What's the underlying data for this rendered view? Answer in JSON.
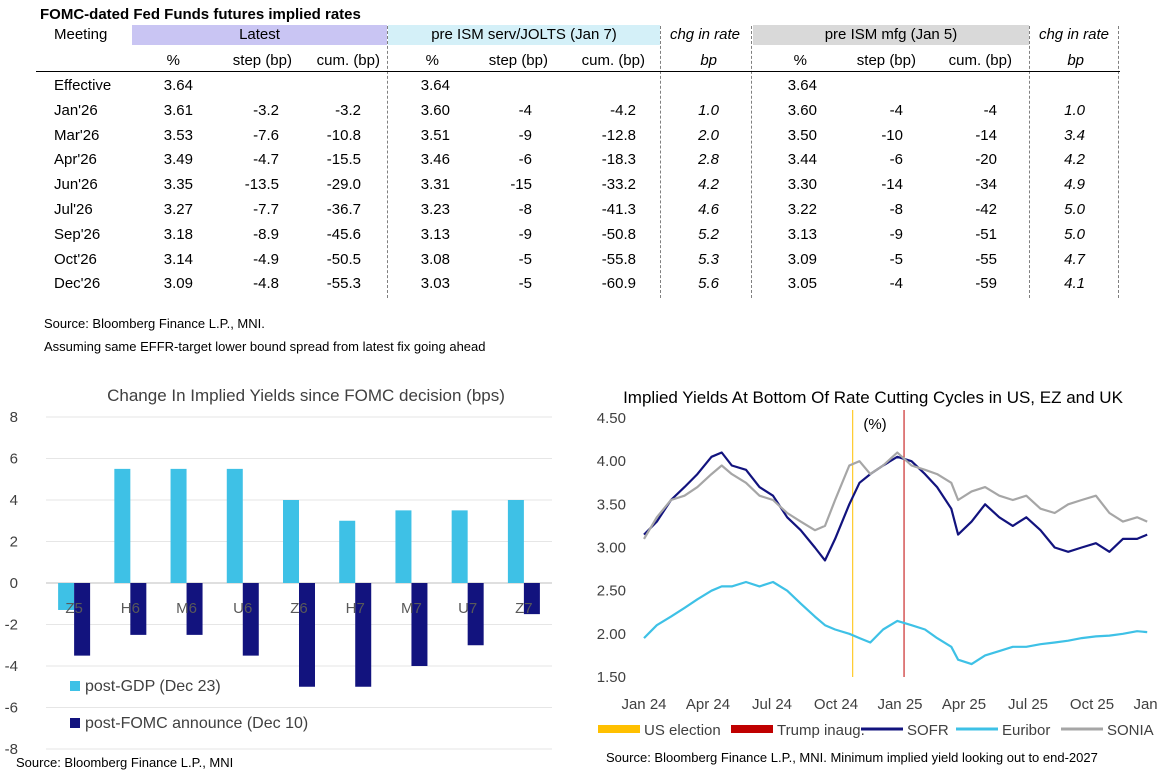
{
  "table": {
    "title": "FOMC-dated Fed Funds futures implied rates",
    "meeting_label": "Meeting",
    "groups": [
      {
        "label": "Latest",
        "color": "#c9c5f3"
      },
      {
        "label": "pre ISM serv/JOLTS (Jan 7)",
        "color": "#d4f0f8"
      },
      {
        "label": "chg in rate",
        "color": "#ffffff"
      },
      {
        "label": "pre ISM mfg (Jan 5)",
        "color": "#d9d9d9"
      },
      {
        "label": "chg in rate",
        "color": "#ffffff"
      }
    ],
    "subheaders": {
      "pct": "%",
      "step": "step (bp)",
      "cum": "cum. (bp)",
      "bp": "bp"
    },
    "rows": [
      {
        "meeting": "Effective",
        "latest": [
          "3.64",
          "",
          ""
        ],
        "pre_serv": [
          "3.64",
          "",
          ""
        ],
        "chg1": "",
        "pre_mfg": [
          "3.64",
          "",
          ""
        ],
        "chg2": ""
      },
      {
        "meeting": "Jan'26",
        "latest": [
          "3.61",
          "-3.2",
          "-3.2"
        ],
        "pre_serv": [
          "3.60",
          "-4",
          "-4.2"
        ],
        "chg1": "1.0",
        "pre_mfg": [
          "3.60",
          "-4",
          "-4"
        ],
        "chg2": "1.0"
      },
      {
        "meeting": "Mar'26",
        "latest": [
          "3.53",
          "-7.6",
          "-10.8"
        ],
        "pre_serv": [
          "3.51",
          "-9",
          "-12.8"
        ],
        "chg1": "2.0",
        "pre_mfg": [
          "3.50",
          "-10",
          "-14"
        ],
        "chg2": "3.4"
      },
      {
        "meeting": "Apr'26",
        "latest": [
          "3.49",
          "-4.7",
          "-15.5"
        ],
        "pre_serv": [
          "3.46",
          "-6",
          "-18.3"
        ],
        "chg1": "2.8",
        "pre_mfg": [
          "3.44",
          "-6",
          "-20"
        ],
        "chg2": "4.2"
      },
      {
        "meeting": "Jun'26",
        "latest": [
          "3.35",
          "-13.5",
          "-29.0"
        ],
        "pre_serv": [
          "3.31",
          "-15",
          "-33.2"
        ],
        "chg1": "4.2",
        "pre_mfg": [
          "3.30",
          "-14",
          "-34"
        ],
        "chg2": "4.9"
      },
      {
        "meeting": "Jul'26",
        "latest": [
          "3.27",
          "-7.7",
          "-36.7"
        ],
        "pre_serv": [
          "3.23",
          "-8",
          "-41.3"
        ],
        "chg1": "4.6",
        "pre_mfg": [
          "3.22",
          "-8",
          "-42"
        ],
        "chg2": "5.0"
      },
      {
        "meeting": "Sep'26",
        "latest": [
          "3.18",
          "-8.9",
          "-45.6"
        ],
        "pre_serv": [
          "3.13",
          "-9",
          "-50.8"
        ],
        "chg1": "5.2",
        "pre_mfg": [
          "3.13",
          "-9",
          "-51"
        ],
        "chg2": "5.0"
      },
      {
        "meeting": "Oct'26",
        "latest": [
          "3.14",
          "-4.9",
          "-50.5"
        ],
        "pre_serv": [
          "3.08",
          "-5",
          "-55.8"
        ],
        "chg1": "5.3",
        "pre_mfg": [
          "3.09",
          "-5",
          "-55"
        ],
        "chg2": "4.7"
      },
      {
        "meeting": "Dec'26",
        "latest": [
          "3.09",
          "-4.8",
          "-55.3"
        ],
        "pre_serv": [
          "3.03",
          "-5",
          "-60.9"
        ],
        "chg1": "5.6",
        "pre_mfg": [
          "3.05",
          "-4",
          "-59"
        ],
        "chg2": "4.1"
      }
    ],
    "source": "Source: Bloomberg Finance L.P., MNI.",
    "note": "Assuming same  EFFR-target lower bound spread from latest fix going ahead"
  },
  "chart_data": [
    {
      "type": "bar",
      "title": "Change In Implied Yields since FOMC decision (bps)",
      "categories": [
        "Z5",
        "H6",
        "M6",
        "U6",
        "Z6",
        "H7",
        "M7",
        "U7",
        "Z7"
      ],
      "series": [
        {
          "name": "post-GDP (Dec 23)",
          "color": "#3ec1e6",
          "values": [
            -1.3,
            5.5,
            5.5,
            5.5,
            4.0,
            3.0,
            3.5,
            3.5,
            4.0
          ]
        },
        {
          "name": "post-FOMC announce (Dec 10)",
          "color": "#12137e",
          "values": [
            -3.5,
            -2.5,
            -2.5,
            -3.5,
            -5.0,
            -5.0,
            -4.0,
            -3.0,
            -1.5
          ]
        }
      ],
      "ylim": [
        -8,
        8
      ],
      "yticks": [
        -8,
        -6,
        -4,
        -2,
        0,
        2,
        4,
        6,
        8
      ],
      "legend_position": "bottom-left",
      "source": "Source: Bloomberg Finance L.P., MNI"
    },
    {
      "type": "line",
      "title": "Implied Yields At Bottom Of Rate Cutting Cycles in US, EZ and UK",
      "ylabel": "(%)",
      "ylim": [
        1.5,
        4.5
      ],
      "yticks": [
        "1.50",
        "2.00",
        "2.50",
        "3.00",
        "3.50",
        "4.00",
        "4.50"
      ],
      "xlim": [
        "2024-01-01",
        "2026-01-31"
      ],
      "xticks": [
        "Jan 24",
        "Apr 24",
        "Jul 24",
        "Oct 24",
        "Jan 25",
        "Apr 25",
        "Jul 25",
        "Oct 25",
        "Jan 26"
      ],
      "events": [
        {
          "name": "US election",
          "date": "2024-11-05",
          "color": "#ffc000"
        },
        {
          "name": "Trump inaug.",
          "date": "2025-01-20",
          "color": "#c00000"
        }
      ],
      "series": [
        {
          "name": "SOFR",
          "color": "#12137e",
          "dates": [
            "2024-01-01",
            "2024-01-20",
            "2024-02-10",
            "2024-03-01",
            "2024-03-20",
            "2024-04-10",
            "2024-04-25",
            "2024-05-10",
            "2024-05-31",
            "2024-06-20",
            "2024-07-10",
            "2024-07-31",
            "2024-08-20",
            "2024-09-10",
            "2024-09-25",
            "2024-10-10",
            "2024-10-31",
            "2024-11-15",
            "2024-12-01",
            "2024-12-20",
            "2025-01-10",
            "2025-01-31",
            "2025-02-20",
            "2025-03-10",
            "2025-03-31",
            "2025-04-10",
            "2025-04-30",
            "2025-05-20",
            "2025-06-10",
            "2025-06-30",
            "2025-07-20",
            "2025-08-10",
            "2025-08-31",
            "2025-09-20",
            "2025-10-10",
            "2025-10-31",
            "2025-11-20",
            "2025-12-10",
            "2025-12-31",
            "2026-01-15"
          ],
          "values": [
            3.15,
            3.3,
            3.55,
            3.7,
            3.85,
            4.05,
            4.1,
            3.95,
            3.9,
            3.7,
            3.6,
            3.35,
            3.2,
            3.0,
            2.85,
            3.1,
            3.5,
            3.75,
            3.85,
            3.95,
            4.05,
            4.0,
            3.85,
            3.7,
            3.45,
            3.15,
            3.3,
            3.5,
            3.35,
            3.25,
            3.35,
            3.2,
            3.0,
            2.95,
            3.0,
            3.05,
            2.95,
            3.1,
            3.1,
            3.15
          ]
        },
        {
          "name": "Euribor",
          "color": "#3ec1e6",
          "dates": [
            "2024-01-01",
            "2024-01-20",
            "2024-02-10",
            "2024-03-01",
            "2024-03-20",
            "2024-04-10",
            "2024-04-25",
            "2024-05-10",
            "2024-05-31",
            "2024-06-20",
            "2024-07-10",
            "2024-07-31",
            "2024-08-20",
            "2024-09-10",
            "2024-09-25",
            "2024-10-10",
            "2024-10-31",
            "2024-11-15",
            "2024-12-01",
            "2024-12-20",
            "2025-01-10",
            "2025-01-31",
            "2025-02-20",
            "2025-03-10",
            "2025-03-31",
            "2025-04-10",
            "2025-04-30",
            "2025-05-20",
            "2025-06-10",
            "2025-06-30",
            "2025-07-20",
            "2025-08-10",
            "2025-08-31",
            "2025-09-20",
            "2025-10-10",
            "2025-10-31",
            "2025-11-20",
            "2025-12-10",
            "2025-12-31",
            "2026-01-15"
          ],
          "values": [
            1.95,
            2.1,
            2.2,
            2.3,
            2.4,
            2.5,
            2.55,
            2.55,
            2.6,
            2.55,
            2.6,
            2.5,
            2.35,
            2.2,
            2.1,
            2.05,
            2.0,
            1.95,
            1.9,
            2.05,
            2.15,
            2.1,
            2.05,
            1.95,
            1.85,
            1.7,
            1.65,
            1.75,
            1.8,
            1.85,
            1.85,
            1.88,
            1.9,
            1.92,
            1.95,
            1.97,
            1.98,
            2.0,
            2.03,
            2.02
          ]
        },
        {
          "name": "SONIA",
          "color": "#a6a6a6",
          "dates": [
            "2024-01-01",
            "2024-01-20",
            "2024-02-10",
            "2024-03-01",
            "2024-03-20",
            "2024-04-10",
            "2024-04-25",
            "2024-05-10",
            "2024-05-31",
            "2024-06-20",
            "2024-07-10",
            "2024-07-31",
            "2024-08-20",
            "2024-09-10",
            "2024-09-25",
            "2024-10-10",
            "2024-10-31",
            "2024-11-15",
            "2024-12-01",
            "2024-12-20",
            "2025-01-10",
            "2025-01-31",
            "2025-02-20",
            "2025-03-10",
            "2025-03-31",
            "2025-04-10",
            "2025-04-30",
            "2025-05-20",
            "2025-06-10",
            "2025-06-30",
            "2025-07-20",
            "2025-08-10",
            "2025-08-31",
            "2025-09-20",
            "2025-10-10",
            "2025-10-31",
            "2025-11-20",
            "2025-12-10",
            "2025-12-31",
            "2026-01-15"
          ],
          "values": [
            3.1,
            3.35,
            3.55,
            3.6,
            3.7,
            3.85,
            3.95,
            3.85,
            3.75,
            3.6,
            3.55,
            3.4,
            3.3,
            3.2,
            3.25,
            3.55,
            3.95,
            4.0,
            3.85,
            3.95,
            4.1,
            3.95,
            3.9,
            3.85,
            3.75,
            3.55,
            3.65,
            3.7,
            3.6,
            3.55,
            3.6,
            3.45,
            3.4,
            3.5,
            3.55,
            3.6,
            3.4,
            3.3,
            3.35,
            3.3
          ]
        }
      ],
      "legend_position": "bottom",
      "source": "Source: Bloomberg Finance L.P., MNI. Minimum implied yield looking out to end-2027"
    }
  ]
}
